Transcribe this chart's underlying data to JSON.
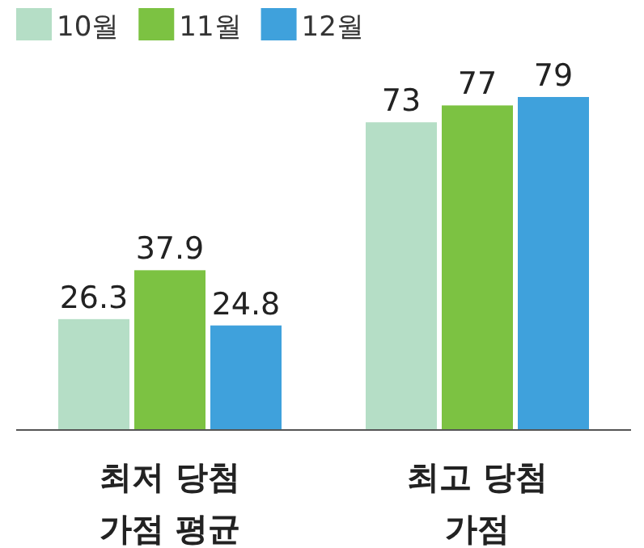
{
  "chart_data": {
    "type": "bar",
    "categories": [
      "최저 당첨\n가점 평균",
      "최고 당첨\n가점"
    ],
    "series": [
      {
        "name": "10월",
        "color": "#b5dec6",
        "values": [
          26.3,
          73
        ]
      },
      {
        "name": "11월",
        "color": "#7cc242",
        "values": [
          37.9,
          77
        ]
      },
      {
        "name": "12월",
        "color": "#3fa1dc",
        "values": [
          24.8,
          79
        ]
      }
    ],
    "data_labels": true,
    "legend": "top left",
    "tick_labels": "x"
  }
}
